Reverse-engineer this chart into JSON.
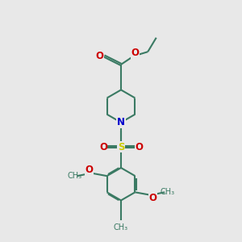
{
  "bg_color": "#e8e8e8",
  "bond_color": "#3a7a63",
  "N_color": "#0000cc",
  "O_color": "#cc0000",
  "S_color": "#cccc00",
  "lw": 1.5,
  "dbo": 0.012,
  "xlim": [
    -1.2,
    1.2
  ],
  "ylim": [
    -1.6,
    1.6
  ]
}
